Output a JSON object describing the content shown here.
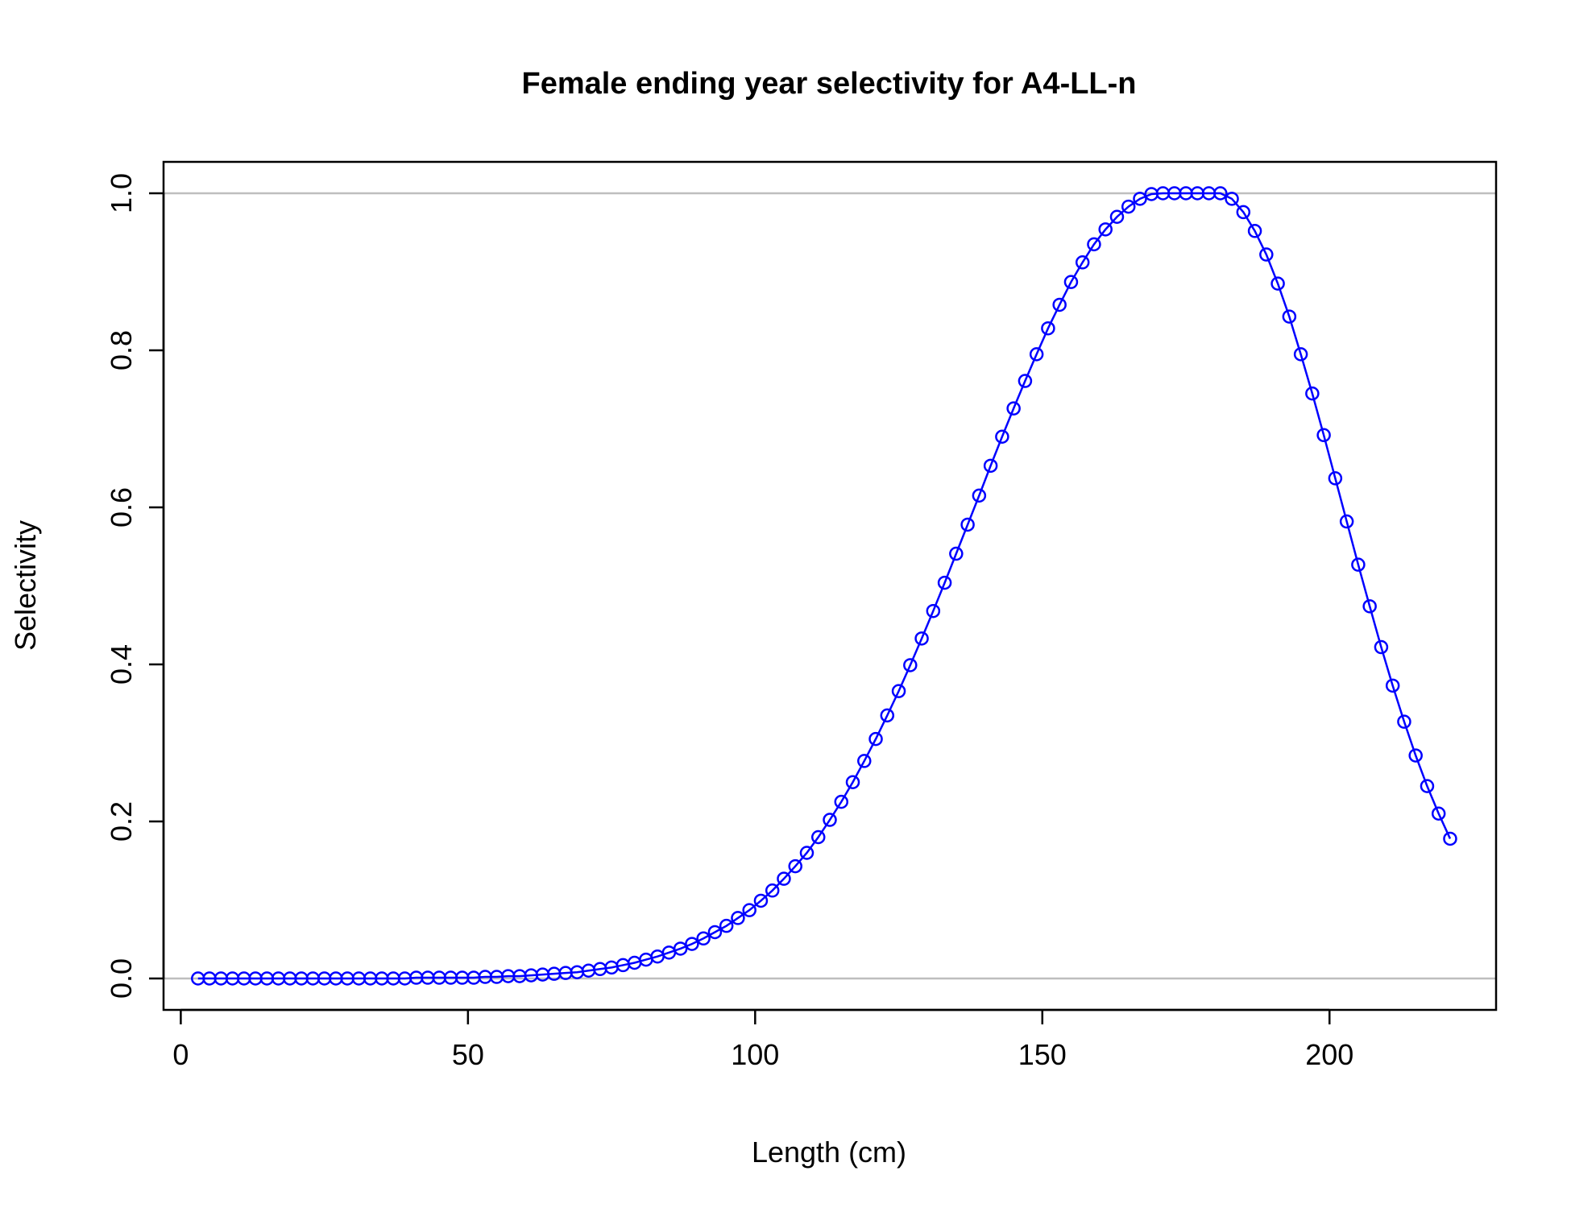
{
  "chart_data": {
    "type": "line",
    "title": "Female ending year selectivity for A4-LL-n",
    "xlabel": "Length (cm)",
    "ylabel": "Selectivity",
    "xlim": [
      -3,
      229
    ],
    "ylim": [
      -0.04,
      1.04
    ],
    "xticks": [
      0,
      50,
      100,
      150,
      200
    ],
    "yticks": [
      0.0,
      0.2,
      0.4,
      0.6,
      0.8,
      1.0
    ],
    "xtick_labels": [
      "0",
      "50",
      "100",
      "150",
      "200"
    ],
    "ytick_labels": [
      "0.0",
      "0.2",
      "0.4",
      "0.6",
      "0.8",
      "1.0"
    ],
    "hlines": [
      0,
      1
    ],
    "hline_color": "#bebebe",
    "series_color": "#0000ff",
    "grid": false,
    "legend": "none",
    "series": [
      {
        "x": [
          3,
          5,
          7,
          9,
          11,
          13,
          15,
          17,
          19,
          21,
          23,
          25,
          27,
          29,
          31,
          33,
          35,
          37,
          39,
          41,
          43,
          45,
          47,
          49,
          51,
          53,
          55,
          57,
          59,
          61,
          63,
          65,
          67,
          69,
          71,
          73,
          75,
          77,
          79,
          81,
          83,
          85,
          87,
          89,
          91,
          93,
          95,
          97,
          99,
          101,
          103,
          105,
          107,
          109,
          111,
          113,
          115,
          117,
          119,
          121,
          123,
          125,
          127,
          129,
          131,
          133,
          135,
          137,
          139,
          141,
          143,
          145,
          147,
          149,
          151,
          153,
          155,
          157,
          159,
          161,
          163,
          165,
          167,
          169,
          171,
          173,
          175,
          177,
          179,
          181,
          183,
          185,
          187,
          189,
          191,
          193,
          195,
          197,
          199,
          201,
          203,
          205,
          207,
          209,
          211,
          213,
          215,
          217,
          219,
          221
        ],
        "y": [
          0.0,
          0.0,
          0.0,
          0.0,
          0.0,
          0.0,
          0.0,
          0.0,
          0.0,
          0.0,
          0.0,
          0.0,
          0.0,
          0.0,
          0.0,
          0.0,
          0.0,
          0.0,
          0.0,
          0.001,
          0.001,
          0.001,
          0.001,
          0.001,
          0.001,
          0.002,
          0.002,
          0.003,
          0.003,
          0.004,
          0.005,
          0.006,
          0.007,
          0.008,
          0.01,
          0.012,
          0.014,
          0.017,
          0.02,
          0.024,
          0.028,
          0.033,
          0.038,
          0.044,
          0.051,
          0.059,
          0.067,
          0.077,
          0.087,
          0.099,
          0.112,
          0.127,
          0.143,
          0.16,
          0.18,
          0.202,
          0.225,
          0.25,
          0.277,
          0.305,
          0.335,
          0.366,
          0.399,
          0.433,
          0.468,
          0.504,
          0.541,
          0.578,
          0.615,
          0.653,
          0.69,
          0.726,
          0.761,
          0.795,
          0.828,
          0.858,
          0.887,
          0.912,
          0.935,
          0.954,
          0.97,
          0.983,
          0.993,
          0.999,
          1.0,
          1.0,
          1.0,
          1.0,
          1.0,
          1.0,
          0.993,
          0.976,
          0.952,
          0.922,
          0.885,
          0.843,
          0.795,
          0.745,
          0.692,
          0.637,
          0.582,
          0.527,
          0.474,
          0.422,
          0.373,
          0.327,
          0.284,
          0.245,
          0.21,
          0.178
        ]
      }
    ]
  }
}
